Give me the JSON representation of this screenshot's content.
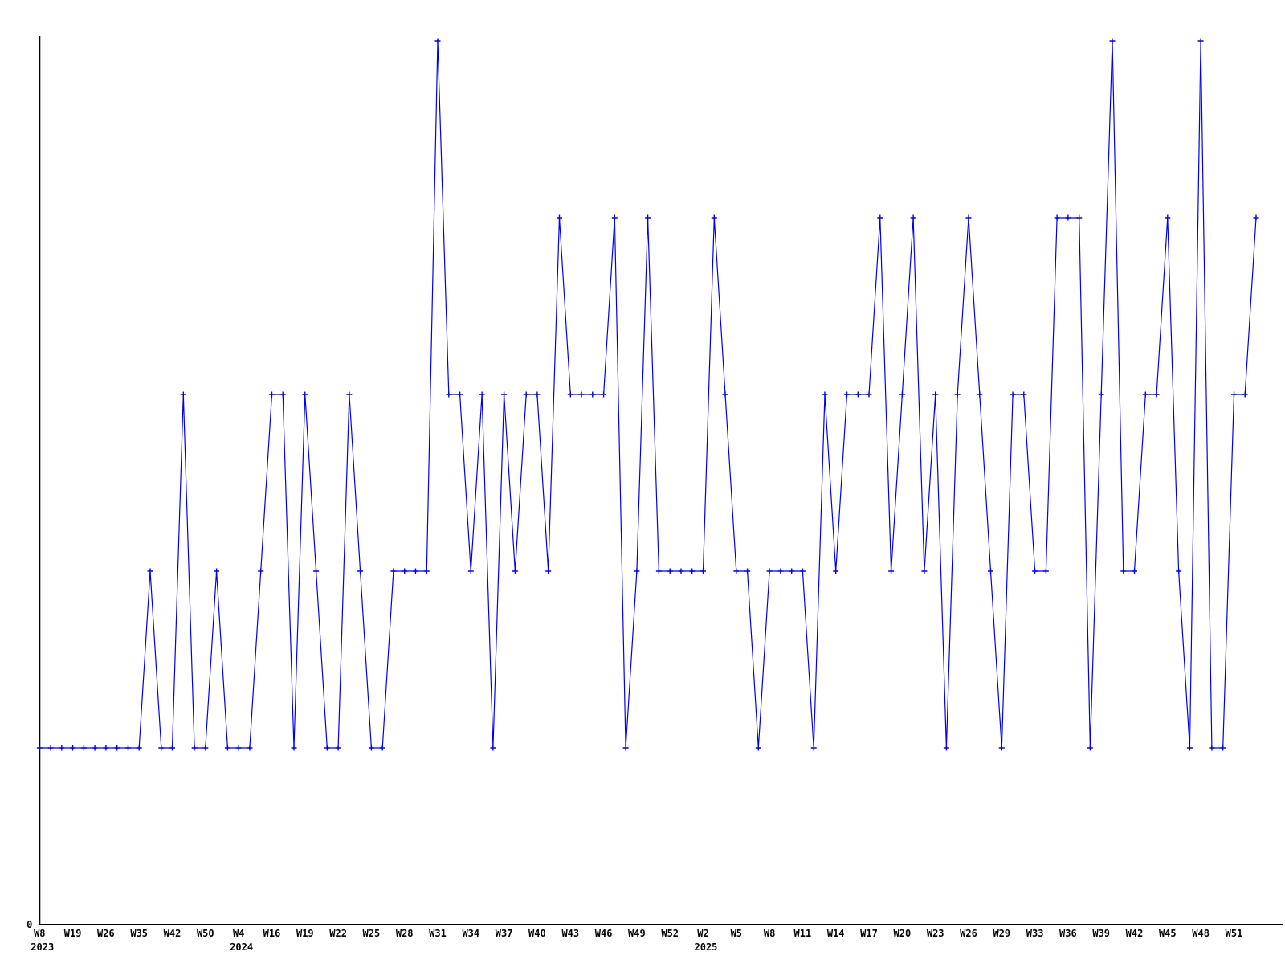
{
  "chart_data": {
    "type": "line",
    "title": "",
    "xlabel": "",
    "ylabel": "",
    "grid": false,
    "legend": null,
    "line_color": "#0000ee",
    "axis_color": "#000000",
    "marker": "plus",
    "y_origin_label": "0",
    "ylim": [
      0,
      5.1
    ],
    "values": [
      1,
      1,
      1,
      1,
      1,
      1,
      1,
      1,
      1,
      1,
      2,
      1,
      1,
      3,
      1,
      1,
      2,
      1,
      1,
      1,
      2,
      3,
      3,
      1,
      3,
      2,
      1,
      1,
      3,
      2,
      1,
      1,
      2,
      2,
      2,
      2,
      5,
      3,
      3,
      2,
      3,
      1,
      3,
      2,
      3,
      3,
      2,
      4,
      3,
      3,
      3,
      3,
      4,
      1,
      2,
      4,
      2,
      2,
      2,
      2,
      2,
      4,
      3,
      2,
      2,
      1,
      2,
      2,
      2,
      2,
      1,
      3,
      2,
      3,
      3,
      3,
      4,
      2,
      3,
      4,
      2,
      3,
      1,
      3,
      4,
      3,
      2,
      1,
      3,
      3,
      2,
      2,
      4,
      4,
      4,
      1,
      3,
      5,
      2,
      2,
      3,
      3,
      4,
      2,
      1,
      5,
      1,
      1,
      3,
      3,
      4
    ],
    "ticks": [
      {
        "index": 0,
        "label": "W8",
        "year": "2023"
      },
      {
        "index": 3,
        "label": "W19"
      },
      {
        "index": 6,
        "label": "W26"
      },
      {
        "index": 9,
        "label": "W35"
      },
      {
        "index": 12,
        "label": "W42"
      },
      {
        "index": 15,
        "label": "W50"
      },
      {
        "index": 18,
        "label": "W4",
        "year": "2024"
      },
      {
        "index": 21,
        "label": "W16"
      },
      {
        "index": 24,
        "label": "W19"
      },
      {
        "index": 27,
        "label": "W22"
      },
      {
        "index": 30,
        "label": "W25"
      },
      {
        "index": 33,
        "label": "W28"
      },
      {
        "index": 36,
        "label": "W31"
      },
      {
        "index": 39,
        "label": "W34"
      },
      {
        "index": 42,
        "label": "W37"
      },
      {
        "index": 45,
        "label": "W40"
      },
      {
        "index": 48,
        "label": "W43"
      },
      {
        "index": 51,
        "label": "W46"
      },
      {
        "index": 54,
        "label": "W49"
      },
      {
        "index": 57,
        "label": "W52"
      },
      {
        "index": 60,
        "label": "W2",
        "year": "2025"
      },
      {
        "index": 63,
        "label": "W5"
      },
      {
        "index": 66,
        "label": "W8"
      },
      {
        "index": 69,
        "label": "W11"
      },
      {
        "index": 72,
        "label": "W14"
      },
      {
        "index": 75,
        "label": "W17"
      },
      {
        "index": 78,
        "label": "W20"
      },
      {
        "index": 81,
        "label": "W23"
      },
      {
        "index": 84,
        "label": "W26"
      },
      {
        "index": 87,
        "label": "W29"
      },
      {
        "index": 90,
        "label": "W33"
      },
      {
        "index": 93,
        "label": "W36"
      },
      {
        "index": 96,
        "label": "W39"
      },
      {
        "index": 99,
        "label": "W42"
      },
      {
        "index": 102,
        "label": "W45"
      },
      {
        "index": 105,
        "label": "W48"
      },
      {
        "index": 108,
        "label": "W51"
      }
    ]
  }
}
